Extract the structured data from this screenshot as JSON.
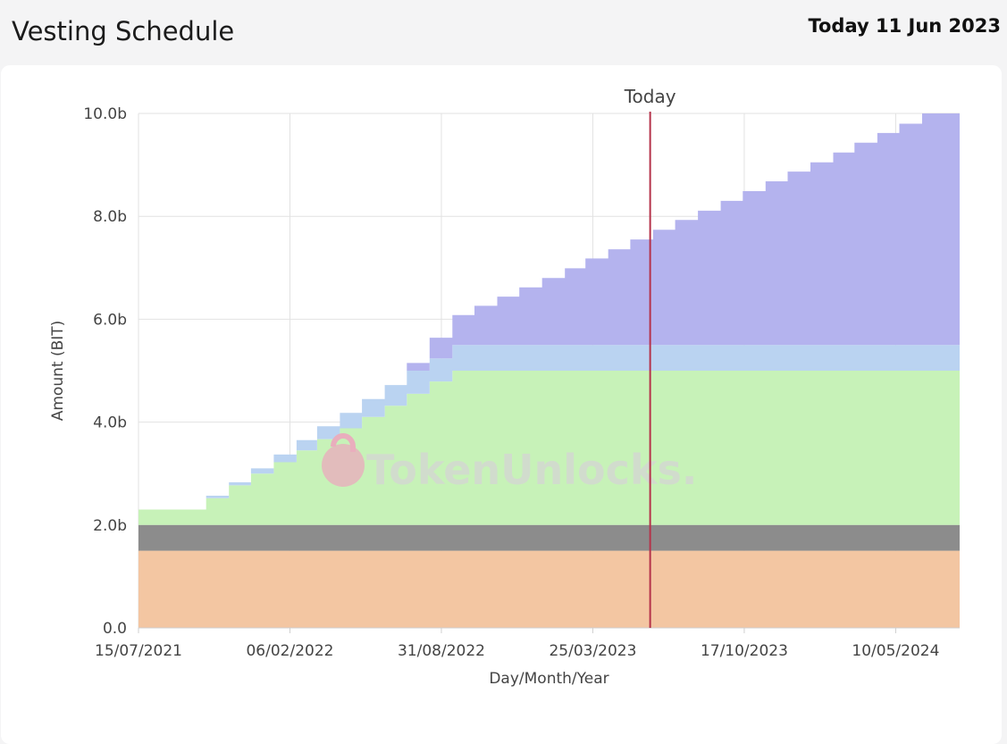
{
  "header": {
    "title": "Vesting Schedule",
    "today_label": "Today 11 Jun 2023"
  },
  "chart_data": {
    "type": "area",
    "stacked": true,
    "step": true,
    "xlabel": "Day/Month/Year",
    "ylabel": "Amount (BIT)",
    "ylim": [
      0,
      10000000000
    ],
    "xlim": [
      "2021-07-15",
      "2024-08-05"
    ],
    "y_ticks": [
      0,
      2000000000,
      4000000000,
      6000000000,
      8000000000,
      10000000000
    ],
    "y_tick_labels": [
      "0.0",
      "2.0b",
      "4.0b",
      "6.0b",
      "8.0b",
      "10.0b"
    ],
    "x_ticks": [
      "2021-07-15",
      "2022-02-06",
      "2022-08-31",
      "2023-03-25",
      "2023-10-17",
      "2024-05-10"
    ],
    "x_tick_labels": [
      "15/07/2021",
      "06/02/2022",
      "31/08/2022",
      "25/03/2023",
      "17/10/2023",
      "10/05/2024"
    ],
    "grid": true,
    "marker": {
      "label": "Today",
      "date": "2023-06-11",
      "color": "#b5324a"
    },
    "watermark": "TokenUnlocks.",
    "x": [
      "2021-07-15",
      "2021-10-15",
      "2021-11-15",
      "2021-12-15",
      "2022-01-15",
      "2022-02-15",
      "2022-03-15",
      "2022-04-15",
      "2022-05-15",
      "2022-06-15",
      "2022-07-15",
      "2022-08-15",
      "2022-09-15",
      "2022-10-15",
      "2022-11-15",
      "2022-12-15",
      "2023-01-15",
      "2023-02-15",
      "2023-03-15",
      "2023-04-15",
      "2023-05-15",
      "2023-06-15",
      "2023-07-15",
      "2023-08-15",
      "2023-09-15",
      "2023-10-15",
      "2023-11-15",
      "2023-12-15",
      "2024-01-15",
      "2024-02-15",
      "2024-03-15",
      "2024-04-15",
      "2024-05-15",
      "2024-06-15",
      "2024-08-05"
    ],
    "series": [
      {
        "color": "#f3c6a2",
        "values": [
          1.5,
          1.5,
          1.5,
          1.5,
          1.5,
          1.5,
          1.5,
          1.5,
          1.5,
          1.5,
          1.5,
          1.5,
          1.5,
          1.5,
          1.5,
          1.5,
          1.5,
          1.5,
          1.5,
          1.5,
          1.5,
          1.5,
          1.5,
          1.5,
          1.5,
          1.5,
          1.5,
          1.5,
          1.5,
          1.5,
          1.5,
          1.5,
          1.5,
          1.5,
          1.5
        ]
      },
      {
        "color": "#8c8c8c",
        "values": [
          0.5,
          0.5,
          0.5,
          0.5,
          0.5,
          0.5,
          0.5,
          0.5,
          0.5,
          0.5,
          0.5,
          0.5,
          0.5,
          0.5,
          0.5,
          0.5,
          0.5,
          0.5,
          0.5,
          0.5,
          0.5,
          0.5,
          0.5,
          0.5,
          0.5,
          0.5,
          0.5,
          0.5,
          0.5,
          0.5,
          0.5,
          0.5,
          0.5,
          0.5,
          0.5
        ]
      },
      {
        "color": "#c7f2b8",
        "values": [
          0.3,
          0.52,
          0.77,
          1.0,
          1.22,
          1.45,
          1.67,
          1.88,
          2.1,
          2.32,
          2.55,
          2.79,
          3.0,
          3.0,
          3.0,
          3.0,
          3.0,
          3.0,
          3.0,
          3.0,
          3.0,
          3.0,
          3.0,
          3.0,
          3.0,
          3.0,
          3.0,
          3.0,
          3.0,
          3.0,
          3.0,
          3.0,
          3.0,
          3.0,
          3.0
        ]
      },
      {
        "color": "#bad3f1",
        "values": [
          0.0,
          0.05,
          0.06,
          0.1,
          0.15,
          0.2,
          0.25,
          0.3,
          0.35,
          0.4,
          0.45,
          0.45,
          0.5,
          0.5,
          0.5,
          0.5,
          0.5,
          0.5,
          0.5,
          0.5,
          0.5,
          0.5,
          0.5,
          0.5,
          0.5,
          0.5,
          0.5,
          0.5,
          0.5,
          0.5,
          0.5,
          0.5,
          0.5,
          0.5,
          0.5
        ]
      },
      {
        "color": "#b4b3ee",
        "values": [
          0.0,
          0.0,
          0.0,
          0.0,
          0.0,
          0.0,
          0.0,
          0.0,
          0.0,
          0.0,
          0.15,
          0.4,
          0.58,
          0.76,
          0.94,
          1.12,
          1.3,
          1.49,
          1.68,
          1.86,
          2.05,
          2.24,
          2.43,
          2.61,
          2.8,
          2.99,
          3.18,
          3.37,
          3.55,
          3.74,
          3.93,
          4.12,
          4.3,
          4.5,
          4.5
        ]
      }
    ],
    "value_unit": "b"
  }
}
